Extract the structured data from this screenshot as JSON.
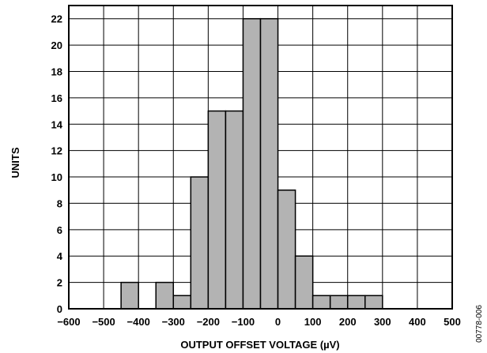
{
  "chart_data": {
    "type": "bar",
    "title": "",
    "xlabel": "OUTPUT OFFSET VOLTAGE (µV)",
    "ylabel": "UNITS",
    "figure_id": "00778-006",
    "xlim": [
      -600,
      500
    ],
    "ylim": [
      0,
      23
    ],
    "xticks": [
      -600,
      -500,
      -400,
      -300,
      -200,
      -100,
      0,
      100,
      200,
      300,
      400,
      500
    ],
    "xtick_labels": [
      "−600",
      "−500",
      "−400",
      "−300",
      "−200",
      "−100",
      "0",
      "100",
      "200",
      "300",
      "400",
      "500"
    ],
    "yticks": [
      0,
      2,
      4,
      6,
      8,
      10,
      12,
      14,
      16,
      18,
      20,
      22
    ],
    "grid": true,
    "bar_color": "#b3b3b3",
    "bin_width": 50,
    "bins": [
      {
        "start": -450,
        "value": 2
      },
      {
        "start": -350,
        "value": 2
      },
      {
        "start": -300,
        "value": 1
      },
      {
        "start": -250,
        "value": 10
      },
      {
        "start": -200,
        "value": 15
      },
      {
        "start": -150,
        "value": 15
      },
      {
        "start": -100,
        "value": 22
      },
      {
        "start": -50,
        "value": 22
      },
      {
        "start": 0,
        "value": 9
      },
      {
        "start": 50,
        "value": 4
      },
      {
        "start": 100,
        "value": 1
      },
      {
        "start": 150,
        "value": 1
      },
      {
        "start": 200,
        "value": 1
      },
      {
        "start": 250,
        "value": 1
      }
    ]
  }
}
